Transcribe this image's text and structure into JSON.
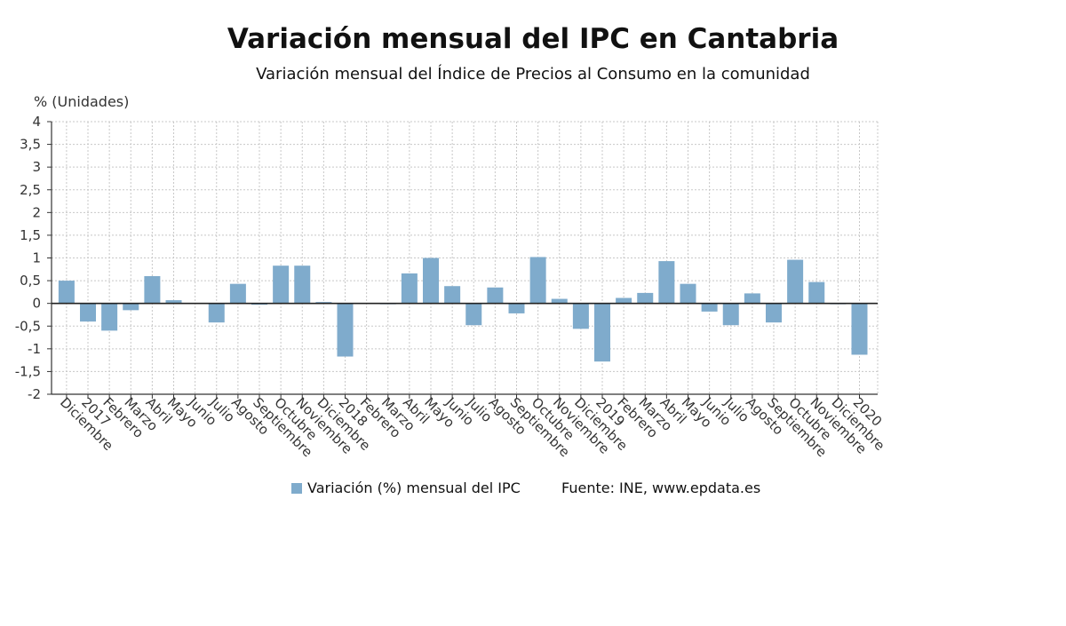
{
  "title": "Variación mensual del IPC en Cantabria",
  "subtitle": "Variación mensual del Índice de Precios al Consumo en la comunidad",
  "legend_label": "Variación (%) mensual del IPC",
  "source": "Fuente: INE, www.epdata.es",
  "colors": {
    "bar": "#7fabcc",
    "grid": "#c8c8c8",
    "zero": "#222222"
  },
  "chart_data": {
    "type": "bar",
    "ylabel": "% (Unidades)",
    "ylim": [
      -2,
      4
    ],
    "yticks": [
      {
        "v": 4,
        "label": "4"
      },
      {
        "v": 3.5,
        "label": "3,5"
      },
      {
        "v": 3,
        "label": "3"
      },
      {
        "v": 2.5,
        "label": "2,5"
      },
      {
        "v": 2,
        "label": "2"
      },
      {
        "v": 1.5,
        "label": "1,5"
      },
      {
        "v": 1,
        "label": "1"
      },
      {
        "v": 0.5,
        "label": "0,5"
      },
      {
        "v": 0,
        "label": "0"
      },
      {
        "v": -0.5,
        "label": "-0,5"
      },
      {
        "v": -1,
        "label": "-1"
      },
      {
        "v": -1.5,
        "label": "-1,5"
      },
      {
        "v": -2,
        "label": "-2"
      }
    ],
    "grid": true,
    "categories": [
      "Diciembre",
      "2017",
      "Febrero",
      "Marzo",
      "Abril",
      "Mayo",
      "Junio",
      "Julio",
      "Agosto",
      "Septiembre",
      "Octubre",
      "Noviembre",
      "Diciembre",
      "2018",
      "Febrero",
      "Marzo",
      "Abril",
      "Mayo",
      "Junio",
      "Julio",
      "Agosto",
      "Septiembre",
      "Octubre",
      "Noviembre",
      "Diciembre",
      "2019",
      "Febrero",
      "Marzo",
      "Abril",
      "Mayo",
      "Junio",
      "Julio",
      "Agosto",
      "Septiembre",
      "Octubre",
      "Noviembre",
      "Diciembre",
      "2020"
    ],
    "series": [
      {
        "name": "Variación (%) mensual del IPC",
        "values": [
          0.5,
          -0.4,
          -0.6,
          -0.15,
          0.6,
          0.07,
          0.0,
          -0.42,
          0.43,
          -0.03,
          0.83,
          0.83,
          0.03,
          -1.17,
          0.0,
          -0.02,
          0.66,
          1.0,
          0.38,
          -0.48,
          0.35,
          -0.22,
          1.02,
          0.1,
          -0.56,
          -1.28,
          0.12,
          0.23,
          0.93,
          0.43,
          -0.18,
          -0.48,
          0.22,
          -0.42,
          0.96,
          0.47,
          -0.02,
          -1.13
        ]
      }
    ]
  }
}
